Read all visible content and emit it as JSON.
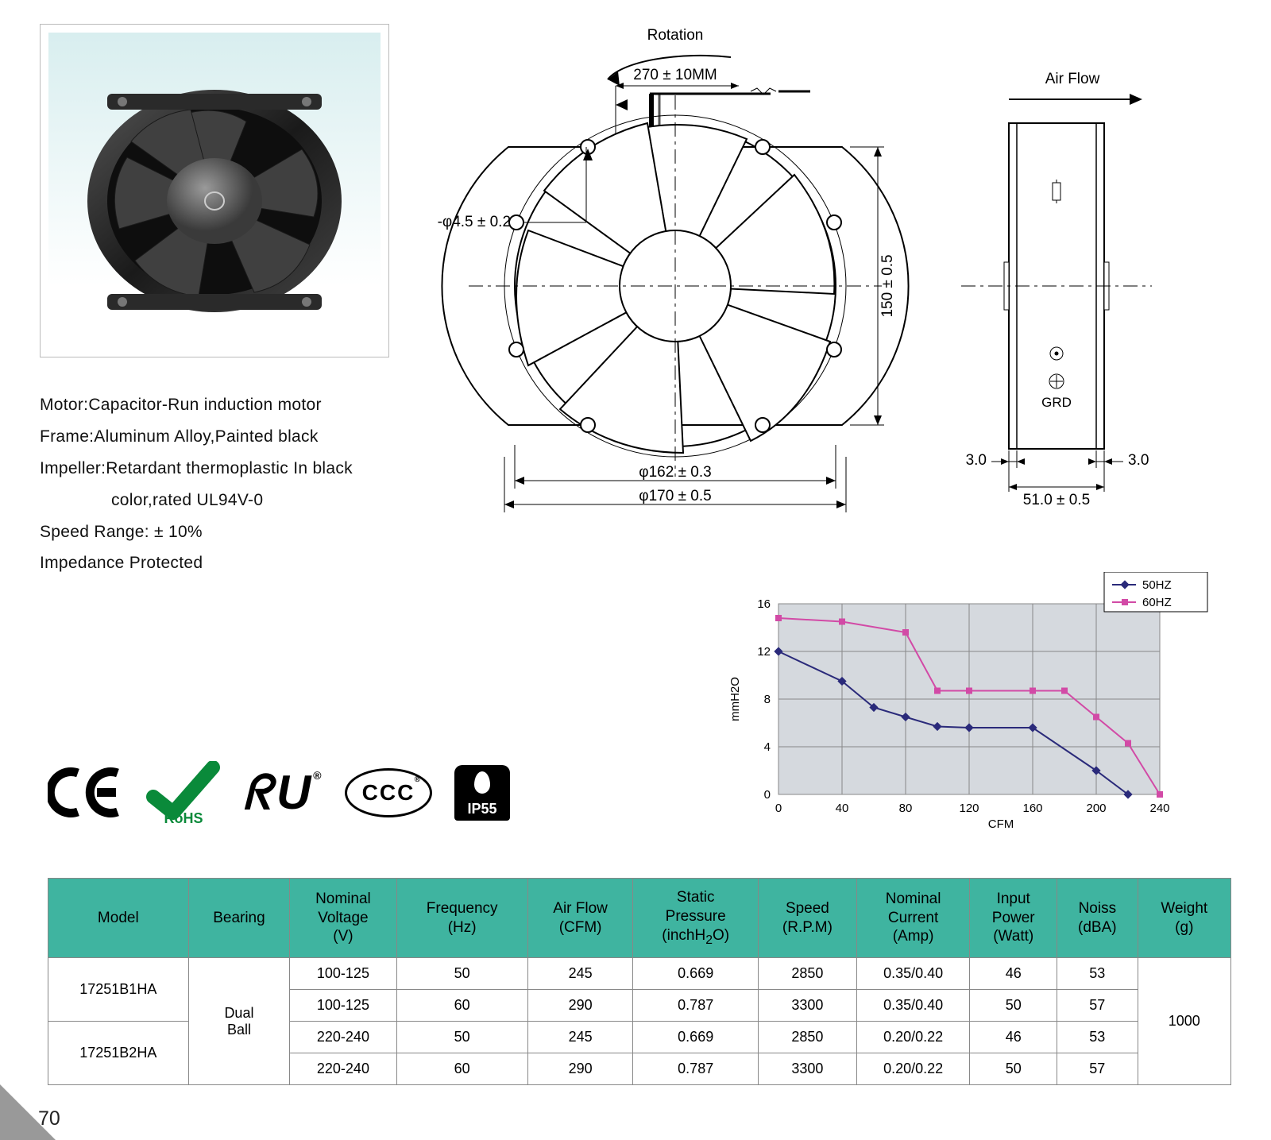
{
  "page_number": "70",
  "specs": {
    "motor": "Motor:Capacitor-Run induction motor",
    "frame": "Frame:Aluminum Alloy,Painted black",
    "impeller1": "Impeller:Retardant thermoplastic In black",
    "impeller2": "color,rated UL94V-0",
    "speed_range": "Speed Range: ± 10%",
    "impedance": "Impedance Protected"
  },
  "diagram": {
    "rotation_label": "Rotation",
    "wire_dim": "270 ± 10MM",
    "hole_dim": "8-φ4.5 ± 0.2",
    "dia_inner": "φ162 ± 0.3",
    "dia_outer": "φ170 ± 0.5",
    "height_dim": "150 ± 0.5",
    "airflow_label": "Air Flow",
    "side_thk_left": "3.0",
    "side_thk_right": "3.0",
    "side_width": "51.0 ± 0.5",
    "grd": "GRD"
  },
  "certifications": {
    "ce": "CE",
    "rohs": "RoHS",
    "ul": "RU",
    "ccc": "CCC",
    "ip55": "IP55"
  },
  "chart": {
    "type": "line",
    "background_color": "#d5d9de",
    "grid_color": "#888888",
    "xlabel": "CFM",
    "ylabel": "mmH2O",
    "xlim": [
      0,
      240
    ],
    "xtick_step": 40,
    "ylim": [
      0,
      16
    ],
    "ytick_step": 4,
    "label_fontsize": 15,
    "tick_fontsize": 15,
    "legend_border": "#000000",
    "series": [
      {
        "name": "50HZ",
        "color": "#2a2a7a",
        "marker": "diamond",
        "x": [
          0,
          40,
          60,
          80,
          100,
          120,
          160,
          200,
          220
        ],
        "y": [
          12.0,
          9.5,
          7.3,
          6.5,
          5.7,
          5.6,
          5.6,
          2.0,
          0.0
        ]
      },
      {
        "name": "60HZ",
        "color": "#d24aa6",
        "marker": "square",
        "x": [
          0,
          40,
          80,
          100,
          120,
          160,
          180,
          200,
          220,
          240
        ],
        "y": [
          14.8,
          14.5,
          13.6,
          8.7,
          8.7,
          8.7,
          8.7,
          6.5,
          4.3,
          0.0
        ]
      }
    ]
  },
  "table": {
    "header_bg": "#3fb4a0",
    "border_color": "#888888",
    "columns": [
      "Model",
      "Bearing",
      "Nominal\nVoltage\n(V)",
      "Frequency\n(Hz)",
      "Air Flow\n(CFM)",
      "Static\nPressure\n(inchH₂O)",
      "Speed\n(R.P.M)",
      "Nominal\nCurrent\n(Amp)",
      "Input\nPower\n(Watt)",
      "Noiss\n(dBA)",
      "Weight\n(g)"
    ],
    "models": [
      "17251B1HA",
      "17251B2HA"
    ],
    "bearing": "Dual\nBall",
    "weight": "1000",
    "rows": [
      [
        "100-125",
        "50",
        "245",
        "0.669",
        "2850",
        "0.35/0.40",
        "46",
        "53"
      ],
      [
        "100-125",
        "60",
        "290",
        "0.787",
        "3300",
        "0.35/0.40",
        "50",
        "57"
      ],
      [
        "220-240",
        "50",
        "245",
        "0.669",
        "2850",
        "0.20/0.22",
        "46",
        "53"
      ],
      [
        "220-240",
        "60",
        "290",
        "0.787",
        "3300",
        "0.20/0.22",
        "50",
        "57"
      ]
    ]
  }
}
